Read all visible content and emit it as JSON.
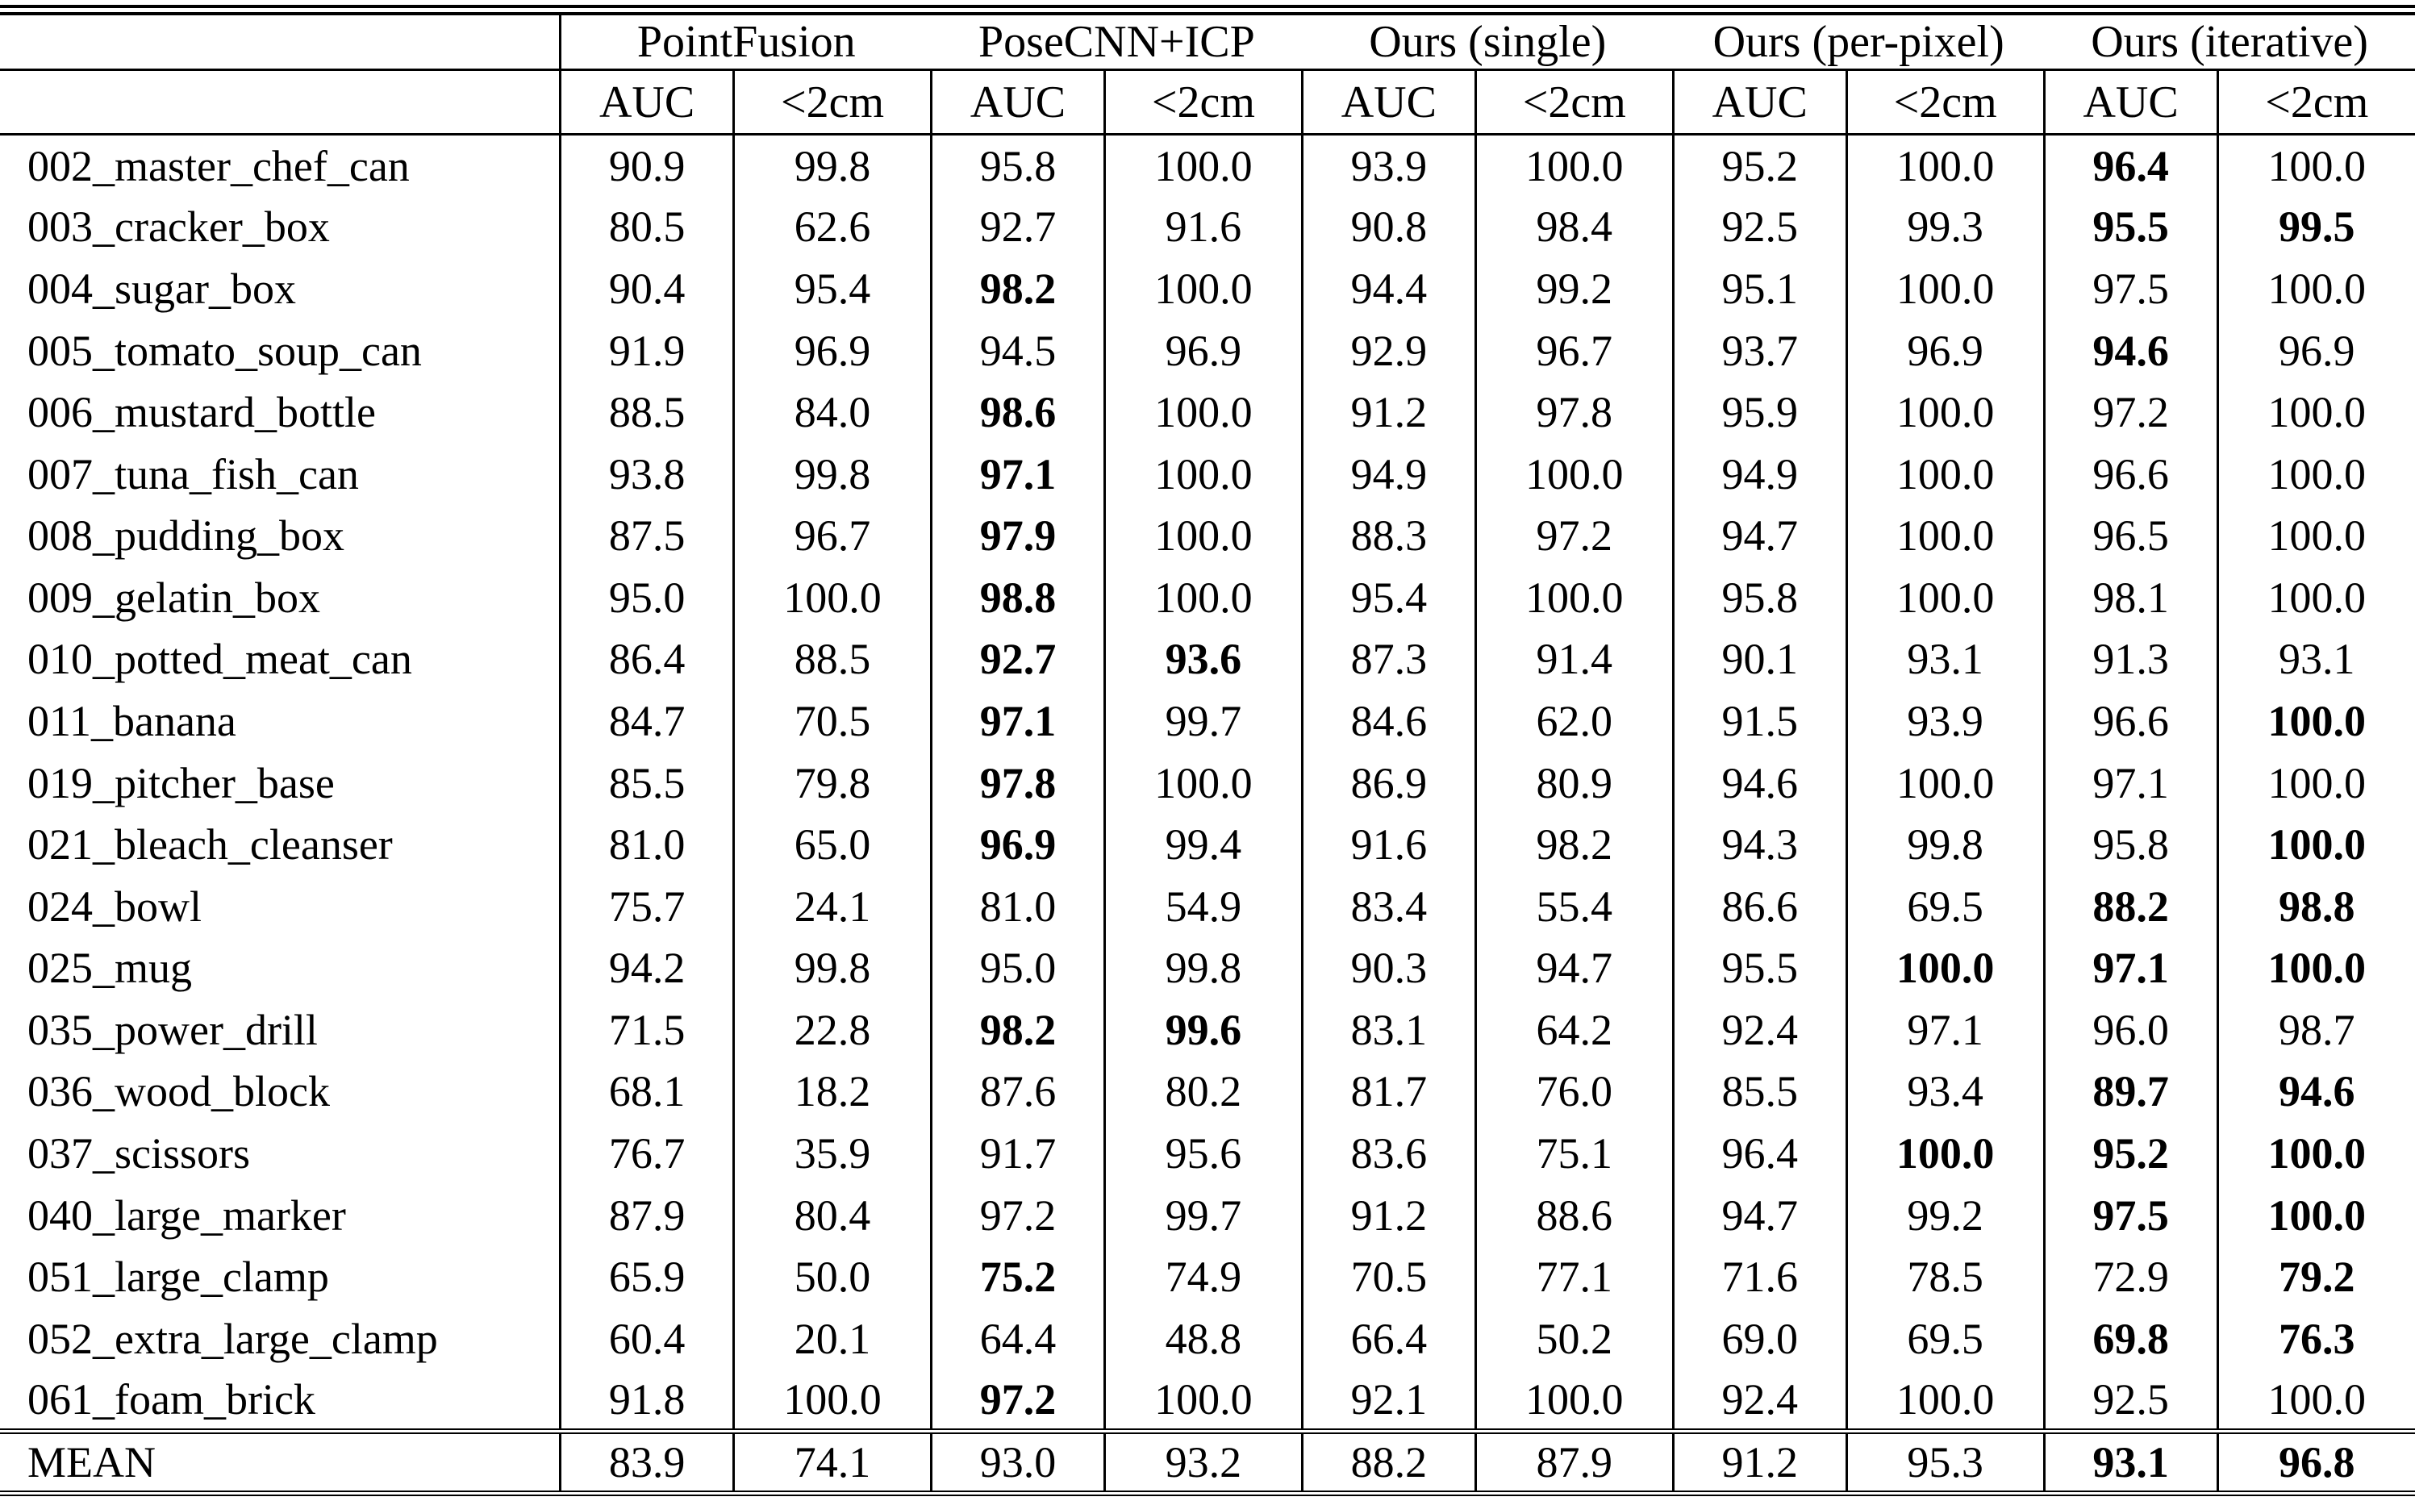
{
  "colors": {
    "text": "#000000",
    "border": "#000000",
    "background": "#ffffff"
  },
  "table": {
    "corner_label": "",
    "group_headers": [
      "PointFusion",
      "PoseCNN+ICP",
      "Ours (single)",
      "Ours (per-pixel)",
      "Ours (iterative)"
    ],
    "sub_headers": [
      "AUC",
      "<2cm"
    ],
    "rows": [
      {
        "label": "002_master_chef_can",
        "values": [
          "90.9",
          "99.8",
          "95.8",
          "100.0",
          "93.9",
          "100.0",
          "95.2",
          "100.0",
          "96.4",
          "100.0"
        ],
        "bold": [
          8
        ]
      },
      {
        "label": "003_cracker_box",
        "values": [
          "80.5",
          "62.6",
          "92.7",
          "91.6",
          "90.8",
          "98.4",
          "92.5",
          "99.3",
          "95.5",
          "99.5"
        ],
        "bold": [
          8,
          9
        ]
      },
      {
        "label": "004_sugar_box",
        "values": [
          "90.4",
          "95.4",
          "98.2",
          "100.0",
          "94.4",
          "99.2",
          "95.1",
          "100.0",
          "97.5",
          "100.0"
        ],
        "bold": [
          2
        ]
      },
      {
        "label": "005_tomato_soup_can",
        "values": [
          "91.9",
          "96.9",
          "94.5",
          "96.9",
          "92.9",
          "96.7",
          "93.7",
          "96.9",
          "94.6",
          "96.9"
        ],
        "bold": [
          8
        ]
      },
      {
        "label": "006_mustard_bottle",
        "values": [
          "88.5",
          "84.0",
          "98.6",
          "100.0",
          "91.2",
          "97.8",
          "95.9",
          "100.0",
          "97.2",
          "100.0"
        ],
        "bold": [
          2
        ]
      },
      {
        "label": "007_tuna_fish_can",
        "values": [
          "93.8",
          "99.8",
          "97.1",
          "100.0",
          "94.9",
          "100.0",
          "94.9",
          "100.0",
          "96.6",
          "100.0"
        ],
        "bold": [
          2
        ]
      },
      {
        "label": "008_pudding_box",
        "values": [
          "87.5",
          "96.7",
          "97.9",
          "100.0",
          "88.3",
          "97.2",
          "94.7",
          "100.0",
          "96.5",
          "100.0"
        ],
        "bold": [
          2
        ]
      },
      {
        "label": "009_gelatin_box",
        "values": [
          "95.0",
          "100.0",
          "98.8",
          "100.0",
          "95.4",
          "100.0",
          "95.8",
          "100.0",
          "98.1",
          "100.0"
        ],
        "bold": [
          2
        ]
      },
      {
        "label": "010_potted_meat_can",
        "values": [
          "86.4",
          "88.5",
          "92.7",
          "93.6",
          "87.3",
          "91.4",
          "90.1",
          "93.1",
          "91.3",
          "93.1"
        ],
        "bold": [
          2,
          3
        ]
      },
      {
        "label": "011_banana",
        "values": [
          "84.7",
          "70.5",
          "97.1",
          "99.7",
          "84.6",
          "62.0",
          "91.5",
          "93.9",
          "96.6",
          "100.0"
        ],
        "bold": [
          2,
          9
        ]
      },
      {
        "label": "019_pitcher_base",
        "values": [
          "85.5",
          "79.8",
          "97.8",
          "100.0",
          "86.9",
          "80.9",
          "94.6",
          "100.0",
          "97.1",
          "100.0"
        ],
        "bold": [
          2
        ]
      },
      {
        "label": "021_bleach_cleanser",
        "values": [
          "81.0",
          "65.0",
          "96.9",
          "99.4",
          "91.6",
          "98.2",
          "94.3",
          "99.8",
          "95.8",
          "100.0"
        ],
        "bold": [
          2,
          9
        ]
      },
      {
        "label": "024_bowl",
        "values": [
          "75.7",
          "24.1",
          "81.0",
          "54.9",
          "83.4",
          "55.4",
          "86.6",
          "69.5",
          "88.2",
          "98.8"
        ],
        "bold": [
          8,
          9
        ]
      },
      {
        "label": "025_mug",
        "values": [
          "94.2",
          "99.8",
          "95.0",
          "99.8",
          "90.3",
          "94.7",
          "95.5",
          "100.0",
          "97.1",
          "100.0"
        ],
        "bold": [
          7,
          8,
          9
        ]
      },
      {
        "label": "035_power_drill",
        "values": [
          "71.5",
          "22.8",
          "98.2",
          "99.6",
          "83.1",
          "64.2",
          "92.4",
          "97.1",
          "96.0",
          "98.7"
        ],
        "bold": [
          2,
          3
        ]
      },
      {
        "label": "036_wood_block",
        "values": [
          "68.1",
          "18.2",
          "87.6",
          "80.2",
          "81.7",
          "76.0",
          "85.5",
          "93.4",
          "89.7",
          "94.6"
        ],
        "bold": [
          8,
          9
        ]
      },
      {
        "label": "037_scissors",
        "values": [
          "76.7",
          "35.9",
          "91.7",
          "95.6",
          "83.6",
          "75.1",
          "96.4",
          "100.0",
          "95.2",
          "100.0"
        ],
        "bold": [
          7,
          8,
          9
        ]
      },
      {
        "label": "040_large_marker",
        "values": [
          "87.9",
          "80.4",
          "97.2",
          "99.7",
          "91.2",
          "88.6",
          "94.7",
          "99.2",
          "97.5",
          "100.0"
        ],
        "bold": [
          8,
          9
        ]
      },
      {
        "label": "051_large_clamp",
        "values": [
          "65.9",
          "50.0",
          "75.2",
          "74.9",
          "70.5",
          "77.1",
          "71.6",
          "78.5",
          "72.9",
          "79.2"
        ],
        "bold": [
          2,
          9
        ]
      },
      {
        "label": "052_extra_large_clamp",
        "values": [
          "60.4",
          "20.1",
          "64.4",
          "48.8",
          "66.4",
          "50.2",
          "69.0",
          "69.5",
          "69.8",
          "76.3"
        ],
        "bold": [
          8,
          9
        ]
      },
      {
        "label": "061_foam_brick",
        "values": [
          "91.8",
          "100.0",
          "97.2",
          "100.0",
          "92.1",
          "100.0",
          "92.4",
          "100.0",
          "92.5",
          "100.0"
        ],
        "bold": [
          2
        ]
      }
    ],
    "mean_row": {
      "label": "MEAN",
      "values": [
        "83.9",
        "74.1",
        "93.0",
        "93.2",
        "88.2",
        "87.9",
        "91.2",
        "95.3",
        "93.1",
        "96.8"
      ],
      "bold": [
        8,
        9
      ]
    }
  }
}
